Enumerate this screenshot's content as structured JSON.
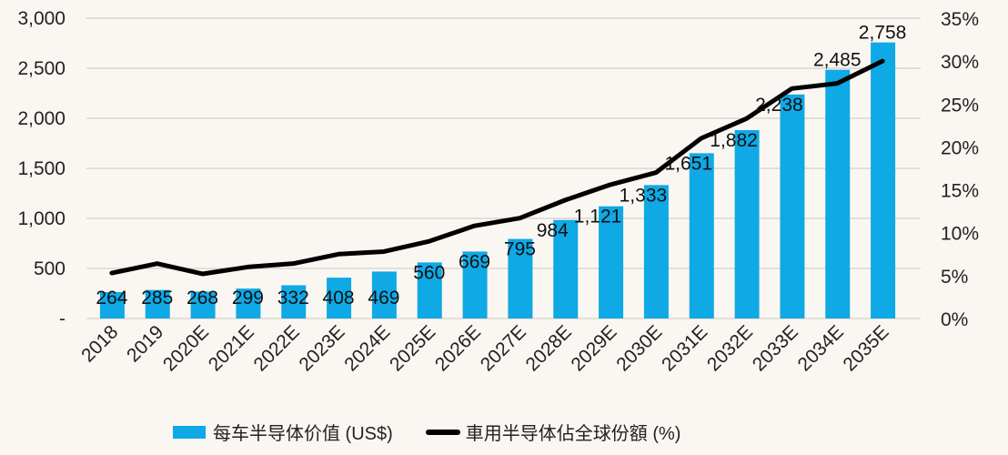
{
  "chart_data": {
    "type": "bar",
    "categories": [
      "2018",
      "2019",
      "2020E",
      "2021E",
      "2022E",
      "2023E",
      "2024E",
      "2025E",
      "2026E",
      "2027E",
      "2028E",
      "2029E",
      "2030E",
      "2031E",
      "2032E",
      "2033E",
      "2034E",
      "2035E"
    ],
    "series": [
      {
        "name": "每车半导体价值 (US$)",
        "type": "bar",
        "axis": "left",
        "color": "#0fa9e6",
        "values": [
          264,
          285,
          268,
          299,
          332,
          408,
          469,
          560,
          669,
          795,
          984,
          1121,
          1333,
          1651,
          1882,
          2238,
          2485,
          2758
        ],
        "labels": [
          "264",
          "285",
          "268",
          "299",
          "332",
          "408",
          "469",
          "560",
          "669",
          "795",
          "984",
          "1,121",
          "1,333",
          "1,651",
          "1,882",
          "2,238",
          "2,485",
          "2,758"
        ]
      },
      {
        "name": "車用半导体佔全球份額 (%)",
        "type": "line",
        "axis": "right",
        "color": "#000000",
        "values": [
          5.3,
          6.4,
          5.2,
          6.0,
          6.4,
          7.5,
          7.8,
          9.0,
          10.8,
          11.7,
          13.8,
          15.6,
          17.0,
          21.0,
          23.3,
          26.8,
          27.4,
          30.0
        ]
      }
    ],
    "y_left": {
      "lim": [
        0,
        3000
      ],
      "ticks": [
        "-",
        "500",
        "1,000",
        "1,500",
        "2,000",
        "2,500",
        "3,000"
      ]
    },
    "y_right": {
      "lim": [
        0,
        35
      ],
      "ticks": [
        "0%",
        "5%",
        "10%",
        "15%",
        "20%",
        "25%",
        "30%",
        "35%"
      ]
    },
    "grid": true,
    "legend": "bottom"
  }
}
